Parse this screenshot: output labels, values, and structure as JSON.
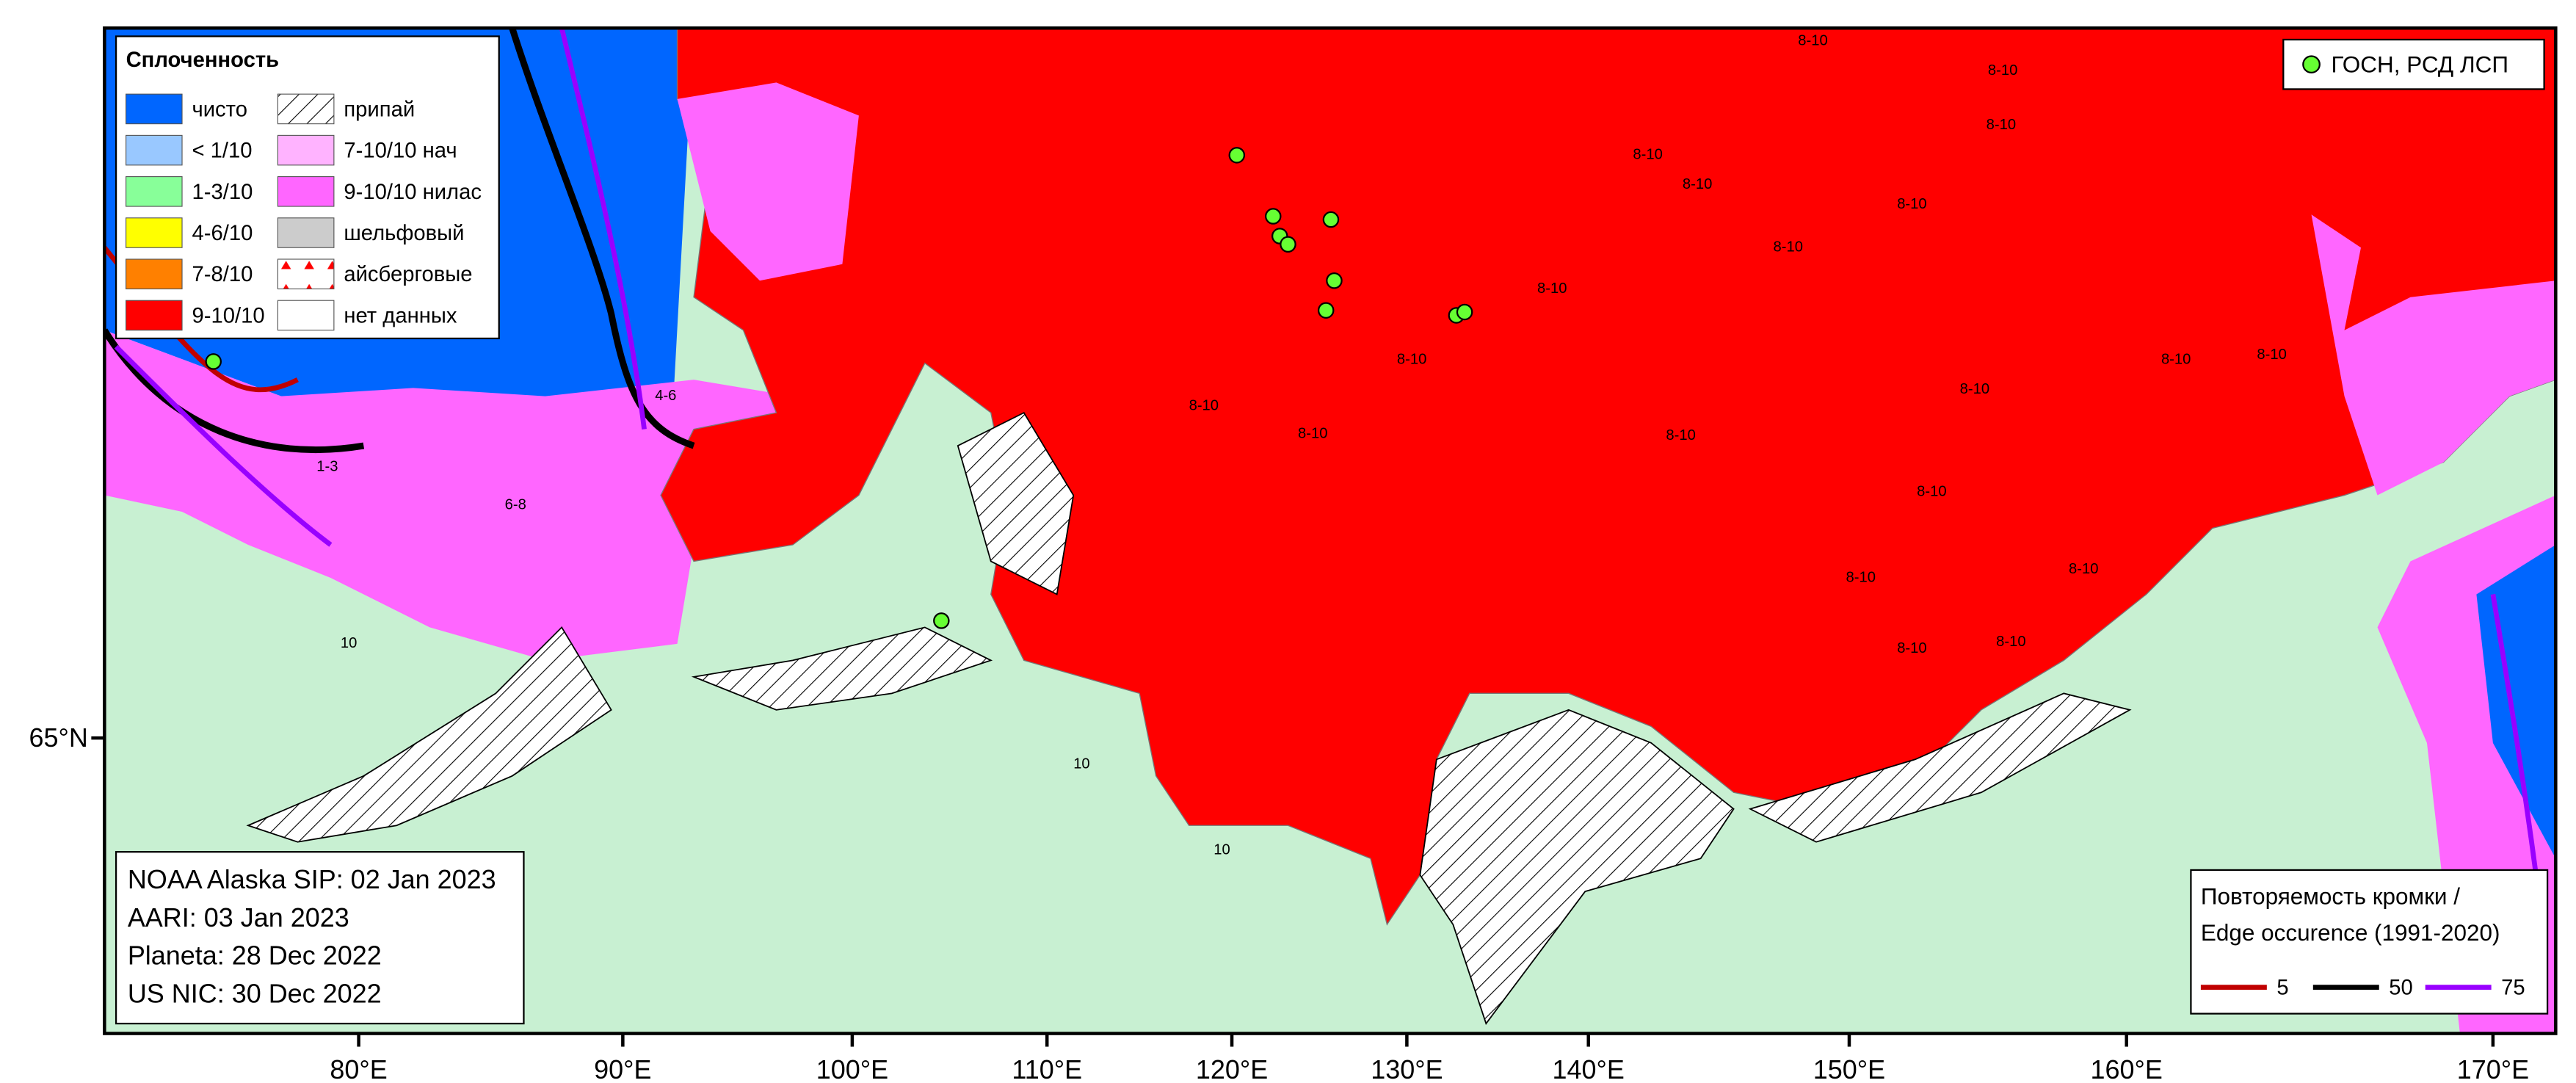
{
  "legend": {
    "title": "Сплоченность",
    "items": [
      {
        "label": "чисто",
        "color": "#0066ff"
      },
      {
        "label": "< 1/10",
        "color": "#99c8ff"
      },
      {
        "label": "1-3/10",
        "color": "#88ff99"
      },
      {
        "label": "4-6/10",
        "color": "#ffff00"
      },
      {
        "label": "7-8/10",
        "color": "#ff8000"
      },
      {
        "label": "9-10/10",
        "color": "#ff0000"
      },
      {
        "label": "припай"
      },
      {
        "label": "7-10/10 нач",
        "color": "#ffb3ff"
      },
      {
        "label": "9-10/10 нилас",
        "color": "#ff66ff"
      },
      {
        "label": "шельфовый",
        "color": "#cccccc"
      },
      {
        "label": "айсберговые"
      },
      {
        "label": "нет данных",
        "color": "#ffffff"
      }
    ]
  },
  "stations_legend": {
    "label": "ГОСН, РСД ЛСП",
    "color": "#66ff33"
  },
  "sources": [
    "NOAA Alaska SIP: 02 Jan 2023",
    "AARI: 03 Jan 2023",
    "Planeta: 28 Dec 2022",
    "US NIC: 30 Dec 2022"
  ],
  "edge_legend": {
    "title": [
      "Повторяемость кромки /",
      "Edge occurence (1991-2020)"
    ],
    "items": [
      {
        "label": "5",
        "color": "#c00000"
      },
      {
        "label": "50",
        "color": "#000000"
      },
      {
        "label": "75",
        "color": "#9900ff"
      }
    ]
  },
  "axis": {
    "lon_labels": [
      "80°E",
      "90°E",
      "100°E",
      "110°E",
      "120°E",
      "130°E",
      "140°E",
      "150°E",
      "160°E",
      "170°E"
    ],
    "lat_labels": [
      "65°N"
    ]
  },
  "ice_labels": [
    "8-10",
    "8-10",
    "8-10",
    "8-10",
    "8-10",
    "8-10",
    "8-10",
    "8-10",
    "8-10",
    "8-10",
    "8-10",
    "8-10",
    "8-10",
    "8-10",
    "8-10",
    "8-10",
    "8-10",
    "8-10",
    "8-10",
    "8-10",
    "1-3",
    "4-6",
    "6-8",
    "10",
    "10",
    "10"
  ]
}
